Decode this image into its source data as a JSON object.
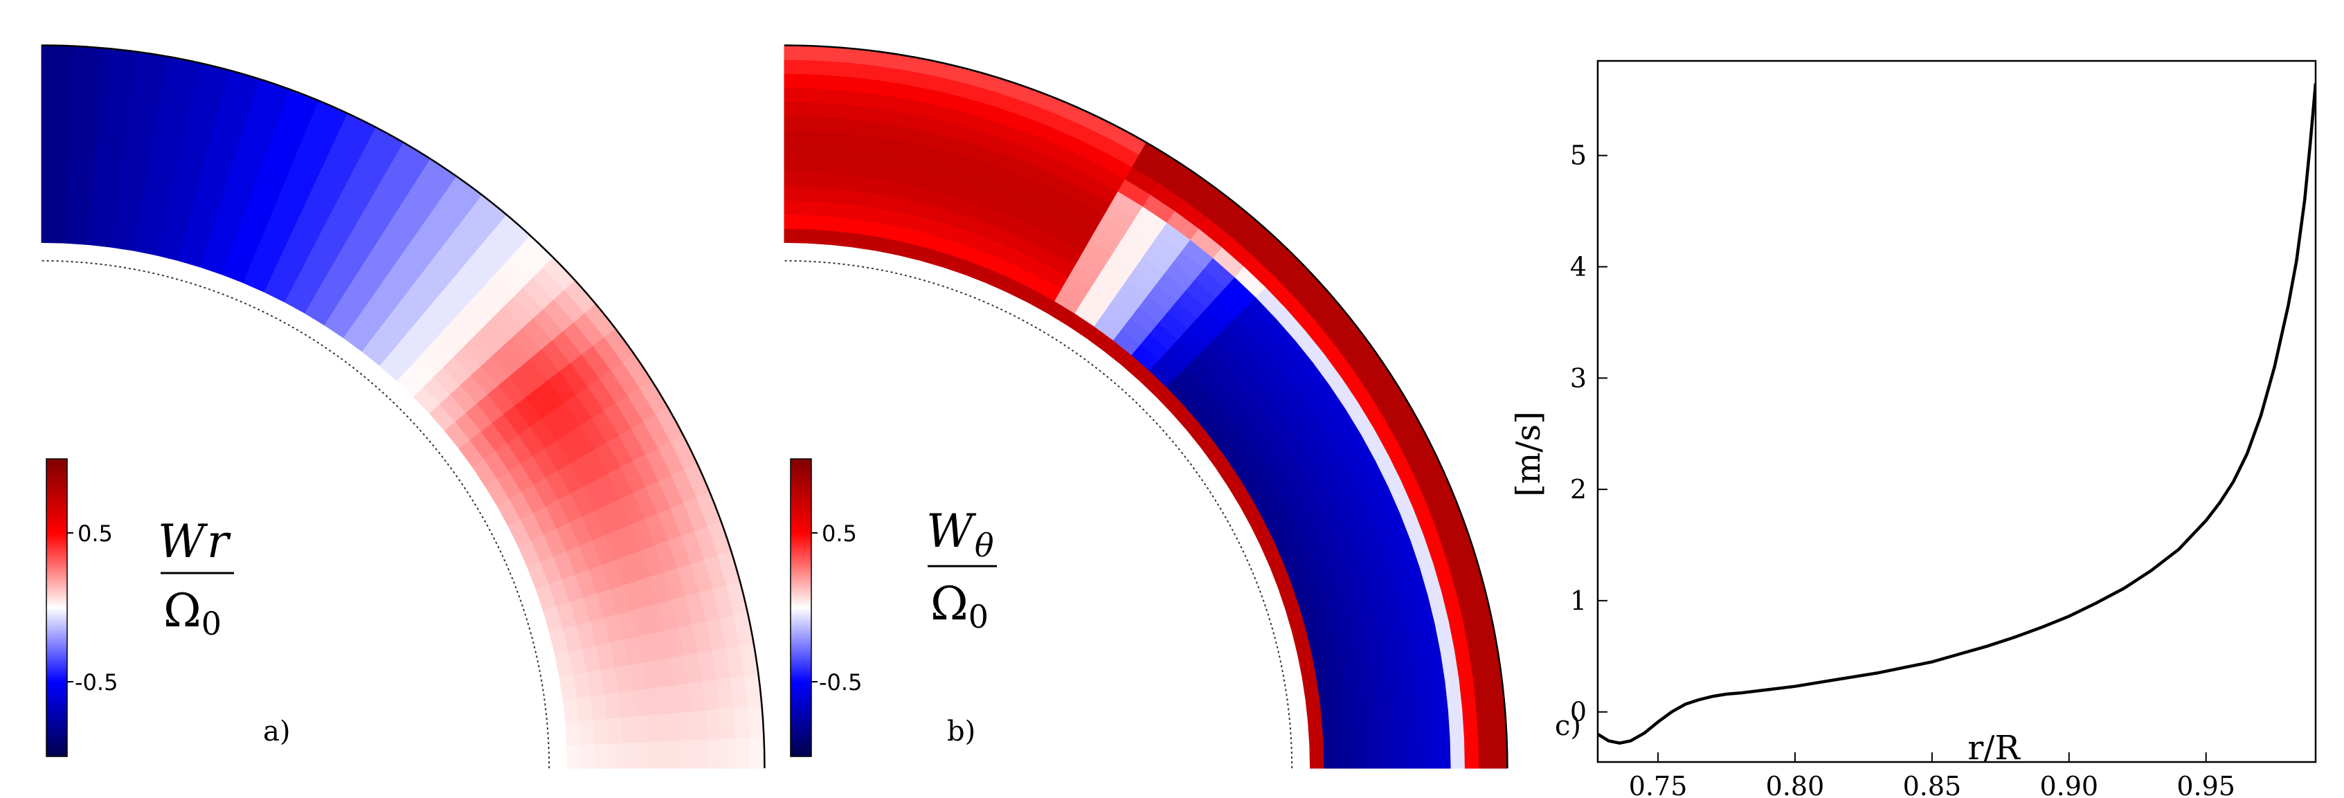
{
  "chart_data": [
    {
      "type": "heatmap",
      "panel_label": "a)",
      "quantity_label": {
        "numerator": "W",
        "numerator_sub": "r",
        "denominator": "Ω",
        "denominator_sub": "0"
      },
      "colormap": "seismic",
      "colorbar": {
        "ticks": [
          0.5,
          -0.5
        ],
        "tick_labels": [
          "0.5",
          "-0.5"
        ],
        "range": [
          -1,
          1
        ]
      },
      "colors": {
        "negative": "#0000ff",
        "zero": "#ffffff",
        "positive": "#ff0000",
        "low_end": "#00004c",
        "high_end": "#800000"
      },
      "r_range": [
        0.72,
        0.99
      ],
      "theta_range_deg": [
        0,
        90
      ],
      "profile": {
        "theta_deg": [
          0,
          15,
          30,
          37,
          45,
          60,
          75,
          90
        ],
        "value": [
          0.03,
          0.12,
          0.25,
          0.3,
          0.05,
          -0.35,
          -0.65,
          -0.85
        ]
      }
    },
    {
      "type": "heatmap",
      "panel_label": "b)",
      "quantity_label": {
        "numerator": "W",
        "numerator_sub": "θ",
        "denominator": "Ω",
        "denominator_sub": "0"
      },
      "colormap": "seismic",
      "colorbar": {
        "ticks": [
          0.5,
          -0.5
        ],
        "tick_labels": [
          "0.5",
          "-0.5"
        ],
        "range": [
          -1,
          1
        ]
      },
      "colors": {
        "negative": "#0000ff",
        "zero": "#ffffff",
        "positive": "#ff0000",
        "low_end": "#00004c",
        "high_end": "#800000"
      },
      "r_range": [
        0.72,
        0.99
      ],
      "theta_range_deg": [
        0,
        90
      ]
    },
    {
      "type": "line",
      "panel_label": "c)",
      "xlabel": "r/R",
      "ylabel": "[m/s]",
      "xlim": [
        0.728,
        0.99
      ],
      "ylim": [
        -0.45,
        5.85
      ],
      "xticks": [
        0.75,
        0.8,
        0.85,
        0.9,
        0.95
      ],
      "xtick_labels": [
        "0.75",
        "0.80",
        "0.85",
        "0.90",
        "0.95"
      ],
      "yticks": [
        0,
        1,
        2,
        3,
        4,
        5
      ],
      "ytick_labels": [
        "0",
        "1",
        "2",
        "3",
        "4",
        "5"
      ],
      "grid": false,
      "series": [
        {
          "x": [
            0.728,
            0.732,
            0.736,
            0.74,
            0.745,
            0.75,
            0.755,
            0.76,
            0.765,
            0.77,
            0.775,
            0.78,
            0.79,
            0.8,
            0.81,
            0.82,
            0.83,
            0.84,
            0.85,
            0.86,
            0.87,
            0.88,
            0.89,
            0.9,
            0.91,
            0.92,
            0.93,
            0.94,
            0.95,
            0.955,
            0.96,
            0.965,
            0.97,
            0.975,
            0.98,
            0.983,
            0.986,
            0.988,
            0.99
          ],
          "y": [
            -0.2,
            -0.26,
            -0.28,
            -0.26,
            -0.19,
            -0.09,
            0.0,
            0.07,
            0.11,
            0.14,
            0.16,
            0.17,
            0.2,
            0.23,
            0.27,
            0.31,
            0.35,
            0.4,
            0.45,
            0.52,
            0.59,
            0.67,
            0.76,
            0.86,
            0.98,
            1.11,
            1.27,
            1.46,
            1.72,
            1.88,
            2.07,
            2.32,
            2.66,
            3.1,
            3.65,
            4.05,
            4.6,
            5.1,
            5.65
          ]
        }
      ]
    }
  ]
}
